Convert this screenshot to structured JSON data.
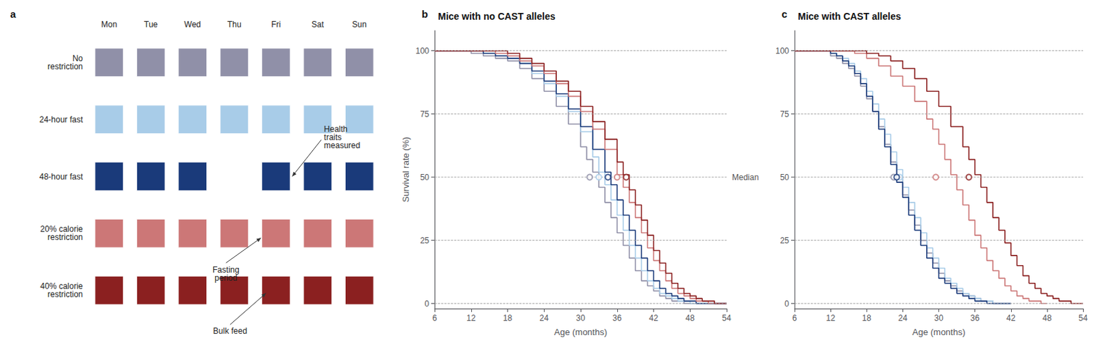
{
  "chart_data": [
    {
      "type": "schedule",
      "title": "a",
      "categories": [
        "Mon",
        "Tue",
        "Wed",
        "Thu",
        "Fri",
        "Sat",
        "Sun"
      ],
      "series": [
        {
          "name": "No\nrestriction",
          "color": "#9090a8",
          "x": [
            "Mon",
            "Tue",
            "Wed",
            "Thu",
            "Fri",
            "Sat",
            "Sun"
          ]
        },
        {
          "name": "24-hour fast",
          "color": "#a8cce8",
          "x": [
            "Mon",
            "Tue",
            "Wed",
            "Thu",
            "Fri",
            "Sat",
            "Sun"
          ]
        },
        {
          "name": "48-hour fast",
          "color": "#1a3a7a",
          "x": [
            "Mon",
            "Tue",
            "Wed",
            "Fri",
            "Sat",
            "Sun"
          ]
        },
        {
          "name": "20% calorie\nrestriction",
          "color": "#cc7777",
          "x": [
            "Mon",
            "Tue",
            "Wed",
            "Thu",
            "Fri",
            "Sat",
            "Sun"
          ]
        },
        {
          "name": "40% calorie\nrestriction",
          "color": "#8b2020",
          "x": [
            "Mon",
            "Tue",
            "Wed",
            "Thu",
            "Fri",
            "Sat",
            "Sun"
          ]
        }
      ],
      "annotations": [
        {
          "text": "Health\ntraits\nmeasured",
          "x": "Fri",
          "y": "48-hour fast"
        },
        {
          "text": "Fasting\nperiod",
          "x": "Fri",
          "y": "20% calorie\nrestriction"
        },
        {
          "text": "Bulk feed",
          "x": "Fri",
          "y": "40% calorie\nrestriction"
        }
      ]
    },
    {
      "type": "line",
      "title": "Mice with no CAST alleles",
      "xlabel": "Age (months)",
      "ylabel": "Survival rate (%)",
      "xlim": [
        6,
        54
      ],
      "ylim": [
        -2,
        108
      ],
      "xticks": [
        6,
        12,
        18,
        24,
        30,
        36,
        42,
        48,
        54
      ],
      "yticks": [
        0,
        25,
        50,
        75,
        100
      ],
      "grid": true,
      "line_style": "step",
      "annotations": [
        {
          "text": "b"
        },
        {
          "text": "Median",
          "y": 50
        }
      ],
      "series": [
        {
          "color": "#9090a8",
          "median": {
            "x": 31.5,
            "y": 50
          },
          "x": [
            6,
            8,
            10,
            12,
            14,
            16,
            18,
            20,
            22,
            24,
            26,
            28,
            30,
            31,
            32,
            33,
            34,
            35,
            36,
            37,
            38,
            39,
            40,
            41,
            42,
            43,
            44,
            45,
            46,
            47,
            48,
            49,
            50,
            51,
            52,
            53,
            54
          ],
          "values": [
            100,
            100,
            100,
            99,
            98,
            97,
            96,
            93,
            89,
            84,
            78,
            71,
            62,
            57,
            52,
            46,
            40,
            34,
            28,
            23,
            18,
            13,
            9,
            7,
            5,
            3,
            2,
            1,
            1,
            0,
            0,
            0,
            0,
            0,
            0,
            0,
            0
          ]
        },
        {
          "color": "#a8cce8",
          "median": {
            "x": 33.0,
            "y": 50
          },
          "x": [
            6,
            8,
            10,
            12,
            14,
            16,
            18,
            20,
            22,
            24,
            26,
            28,
            30,
            32,
            33,
            34,
            35,
            36,
            37,
            38,
            39,
            40,
            41,
            42,
            43,
            44,
            45,
            46,
            47,
            48,
            49,
            50,
            51,
            52,
            53,
            54
          ],
          "values": [
            100,
            100,
            100,
            100,
            99,
            98,
            97,
            95,
            91,
            87,
            82,
            76,
            68,
            58,
            52,
            47,
            41,
            35,
            29,
            23,
            18,
            13,
            9,
            6,
            4,
            3,
            2,
            1,
            1,
            0,
            0,
            0,
            0,
            0,
            0,
            0
          ]
        },
        {
          "color": "#1a3a7a",
          "median": {
            "x": 34.5,
            "y": 50
          },
          "x": [
            6,
            8,
            10,
            12,
            14,
            16,
            18,
            20,
            22,
            24,
            26,
            28,
            30,
            32,
            34,
            35,
            36,
            37,
            38,
            39,
            40,
            41,
            42,
            43,
            44,
            45,
            46,
            47,
            48,
            49,
            50,
            51,
            52,
            53,
            54
          ],
          "values": [
            100,
            100,
            100,
            100,
            99,
            98,
            97,
            95,
            92,
            88,
            83,
            77,
            70,
            61,
            52,
            47,
            41,
            35,
            29,
            23,
            18,
            13,
            9,
            6,
            4,
            3,
            2,
            1,
            1,
            0,
            0,
            0,
            0,
            0,
            0
          ]
        },
        {
          "color": "#cc7777",
          "median": {
            "x": 36.0,
            "y": 50
          },
          "x": [
            6,
            8,
            10,
            12,
            14,
            16,
            18,
            20,
            22,
            24,
            26,
            28,
            30,
            32,
            34,
            36,
            37,
            38,
            39,
            40,
            41,
            42,
            43,
            44,
            45,
            46,
            47,
            48,
            49,
            50,
            51,
            52,
            53,
            54
          ],
          "values": [
            100,
            100,
            100,
            100,
            100,
            99,
            98,
            96,
            94,
            91,
            87,
            82,
            76,
            69,
            61,
            51,
            46,
            40,
            34,
            28,
            22,
            17,
            13,
            9,
            6,
            4,
            3,
            2,
            1,
            1,
            0,
            0,
            0,
            0
          ]
        },
        {
          "color": "#8b2020",
          "median": {
            "x": 37.5,
            "y": 50
          },
          "x": [
            6,
            8,
            10,
            12,
            14,
            16,
            18,
            20,
            22,
            24,
            26,
            28,
            30,
            32,
            34,
            36,
            37,
            38,
            39,
            40,
            41,
            42,
            43,
            44,
            45,
            46,
            47,
            48,
            49,
            50,
            51,
            52,
            53,
            54
          ],
          "values": [
            100,
            100,
            100,
            100,
            100,
            100,
            99,
            97,
            95,
            92,
            88,
            84,
            78,
            72,
            65,
            56,
            51,
            45,
            39,
            33,
            27,
            21,
            16,
            12,
            8,
            6,
            4,
            3,
            2,
            1,
            1,
            0,
            0,
            0
          ]
        }
      ]
    },
    {
      "type": "line",
      "title": "Mice with CAST alleles",
      "xlabel": "Age (months)",
      "xlim": [
        6,
        54
      ],
      "ylim": [
        -2,
        108
      ],
      "xticks": [
        6,
        12,
        18,
        24,
        30,
        36,
        42,
        48,
        54
      ],
      "yticks": [
        0,
        25,
        50,
        75,
        100
      ],
      "grid": true,
      "line_style": "step",
      "annotations": [
        {
          "text": "c"
        }
      ],
      "series": [
        {
          "color": "#9090a8",
          "median": {
            "x": 22.5,
            "y": 50
          },
          "x": [
            6,
            8,
            10,
            12,
            13,
            14,
            15,
            16,
            17,
            18,
            19,
            20,
            21,
            22,
            23,
            24,
            25,
            26,
            27,
            28,
            29,
            30,
            31,
            32,
            33,
            34,
            35,
            36,
            37,
            38,
            39,
            40,
            41,
            42
          ],
          "values": [
            100,
            100,
            100,
            98,
            97,
            95,
            93,
            90,
            86,
            81,
            76,
            70,
            63,
            56,
            50,
            43,
            37,
            31,
            25,
            20,
            16,
            12,
            9,
            7,
            5,
            4,
            3,
            2,
            1,
            1,
            0,
            0,
            0,
            0
          ]
        },
        {
          "color": "#a8cce8",
          "median": {
            "x": 23.5,
            "y": 50
          },
          "x": [
            6,
            8,
            10,
            12,
            13,
            14,
            15,
            16,
            17,
            18,
            19,
            20,
            21,
            22,
            23,
            24,
            25,
            26,
            27,
            28,
            29,
            30,
            31,
            32,
            33,
            34,
            35,
            36,
            37,
            38,
            39,
            40,
            41,
            42
          ],
          "values": [
            100,
            100,
            100,
            99,
            98,
            97,
            95,
            92,
            89,
            84,
            79,
            73,
            67,
            60,
            53,
            46,
            40,
            34,
            28,
            22,
            18,
            14,
            10,
            8,
            6,
            4,
            3,
            2,
            1,
            1,
            0,
            0,
            0,
            0
          ]
        },
        {
          "color": "#1a3a7a",
          "median": {
            "x": 23.0,
            "y": 50
          },
          "x": [
            6,
            8,
            10,
            12,
            13,
            14,
            15,
            16,
            17,
            18,
            19,
            20,
            21,
            22,
            23,
            24,
            25,
            26,
            27,
            28,
            29,
            30,
            31,
            32,
            33,
            34,
            35,
            36,
            37,
            38,
            39,
            40,
            41,
            42
          ],
          "values": [
            100,
            100,
            100,
            99,
            98,
            96,
            94,
            91,
            87,
            82,
            76,
            69,
            62,
            55,
            48,
            42,
            35,
            29,
            23,
            18,
            14,
            10,
            8,
            6,
            4,
            3,
            2,
            1,
            1,
            0,
            0,
            0,
            0,
            0
          ]
        },
        {
          "color": "#cc7777",
          "median": {
            "x": 29.5,
            "y": 50
          },
          "x": [
            6,
            8,
            10,
            12,
            14,
            16,
            18,
            20,
            22,
            24,
            26,
            28,
            29,
            30,
            31,
            32,
            33,
            34,
            35,
            36,
            37,
            38,
            39,
            40,
            41,
            42,
            43,
            44,
            45,
            46,
            47,
            48
          ],
          "values": [
            100,
            100,
            100,
            100,
            100,
            99,
            97,
            94,
            90,
            86,
            80,
            73,
            69,
            63,
            57,
            51,
            45,
            39,
            33,
            27,
            22,
            17,
            13,
            10,
            7,
            5,
            3,
            2,
            1,
            1,
            0,
            0
          ]
        },
        {
          "color": "#8b2020",
          "median": {
            "x": 35.0,
            "y": 50
          },
          "x": [
            6,
            8,
            10,
            12,
            14,
            16,
            18,
            20,
            22,
            24,
            26,
            28,
            30,
            32,
            34,
            35,
            36,
            37,
            38,
            39,
            40,
            41,
            42,
            43,
            44,
            45,
            46,
            47,
            48,
            49,
            50,
            51,
            52,
            53,
            54
          ],
          "values": [
            100,
            100,
            100,
            100,
            100,
            100,
            99,
            98,
            96,
            93,
            89,
            84,
            78,
            70,
            62,
            57,
            51,
            46,
            40,
            34,
            29,
            24,
            19,
            15,
            11,
            8,
            6,
            4,
            3,
            2,
            1,
            1,
            0,
            0,
            0
          ]
        }
      ]
    }
  ]
}
